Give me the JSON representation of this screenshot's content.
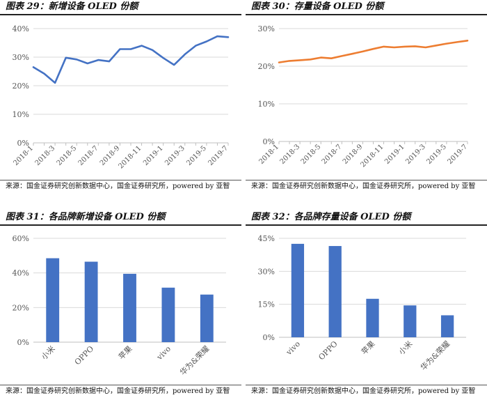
{
  "panels": [
    {
      "title": "图表 29：新增设备 OLED 份额",
      "source": "来源：国金证券研究创新数据中心，国金证券研究所，powered by 亚智"
    },
    {
      "title": "图表 30：存量设备 OLED 份额",
      "source": "来源：国金证券研究创新数据中心，国金证券研究所，powered by 亚智"
    },
    {
      "title": "图表 31：各品牌新增设备 OLED 份额",
      "source": "来源：国金证券研究创新数据中心，国金证券研究所，powered by 亚智"
    },
    {
      "title": "图表 32：各品牌存量设备 OLED 份额",
      "source": "来源：国金证券研究创新数据中心，国金证券研究所，powered by 亚智"
    }
  ],
  "chart_data": [
    {
      "type": "line",
      "title": "图表 29：新增设备 OLED 份额",
      "xlabel": "",
      "ylabel": "",
      "categories": [
        "2018-1",
        "2018-2",
        "2018-3",
        "2018-4",
        "2018-5",
        "2018-6",
        "2018-7",
        "2018-8",
        "2018-9",
        "2018-10",
        "2018-11",
        "2018-12",
        "2019-1",
        "2019-2",
        "2019-3",
        "2019-4",
        "2019-5",
        "2019-6",
        "2019-7"
      ],
      "tick_labels": [
        "2018-1",
        "2018-3",
        "2018-5",
        "2018-7",
        "2018-9",
        "2018-11",
        "2019-1",
        "2019-3",
        "2019-5",
        "2019-7"
      ],
      "values": [
        26.5,
        24.2,
        21.0,
        29.8,
        29.2,
        27.8,
        29.0,
        28.5,
        32.8,
        32.8,
        34.0,
        32.5,
        29.7,
        27.3,
        31.0,
        34.0,
        35.5,
        37.3,
        37.0
      ],
      "ylim": [
        0,
        40
      ],
      "yticks": [
        0,
        10,
        20,
        30,
        40
      ],
      "ytick_labels": [
        "0%",
        "10%",
        "20%",
        "30%",
        "40%"
      ],
      "color": "#4472c4",
      "grid": true
    },
    {
      "type": "line",
      "title": "图表 30：存量设备 OLED 份额",
      "xlabel": "",
      "ylabel": "",
      "categories": [
        "2018-1",
        "2018-2",
        "2018-3",
        "2018-4",
        "2018-5",
        "2018-6",
        "2018-7",
        "2018-8",
        "2018-9",
        "2018-10",
        "2018-11",
        "2018-12",
        "2019-1",
        "2019-2",
        "2019-3",
        "2019-4",
        "2019-5",
        "2019-6",
        "2019-7"
      ],
      "tick_labels": [
        "2018-1",
        "2018-3",
        "2018-5",
        "2018-7",
        "2018-9",
        "2018-11",
        "2019-1",
        "2019-3",
        "2019-5",
        "2019-7"
      ],
      "values": [
        21.0,
        21.4,
        21.6,
        21.8,
        22.3,
        22.1,
        22.7,
        23.3,
        23.9,
        24.6,
        25.2,
        25.0,
        25.2,
        25.3,
        25.0,
        25.5,
        26.0,
        26.4,
        26.8
      ],
      "ylim": [
        0,
        30
      ],
      "yticks": [
        0,
        10,
        20,
        30
      ],
      "ytick_labels": [
        "0%",
        "10%",
        "20%",
        "30%"
      ],
      "color": "#ed7d31",
      "grid": true
    },
    {
      "type": "bar",
      "title": "图表 31：各品牌新增设备 OLED 份额",
      "xlabel": "",
      "ylabel": "",
      "categories": [
        "小米",
        "OPPO",
        "苹果",
        "vivo",
        "华为&荣耀"
      ],
      "values": [
        48.5,
        46.5,
        39.5,
        31.5,
        27.5
      ],
      "ylim": [
        0,
        60
      ],
      "yticks": [
        0,
        20,
        40,
        60
      ],
      "ytick_labels": [
        "0%",
        "20%",
        "40%",
        "60%"
      ],
      "color": "#4472c4",
      "grid": true
    },
    {
      "type": "bar",
      "title": "图表 32：各品牌存量设备 OLED 份额",
      "xlabel": "",
      "ylabel": "",
      "categories": [
        "vivo",
        "OPPO",
        "苹果",
        "小米",
        "华为&荣耀"
      ],
      "values": [
        42.5,
        41.5,
        17.5,
        14.5,
        10.0
      ],
      "ylim": [
        0,
        45
      ],
      "yticks": [
        0,
        15,
        30,
        45
      ],
      "ytick_labels": [
        "0%",
        "15%",
        "30%",
        "45%"
      ],
      "color": "#4472c4",
      "grid": true
    }
  ]
}
